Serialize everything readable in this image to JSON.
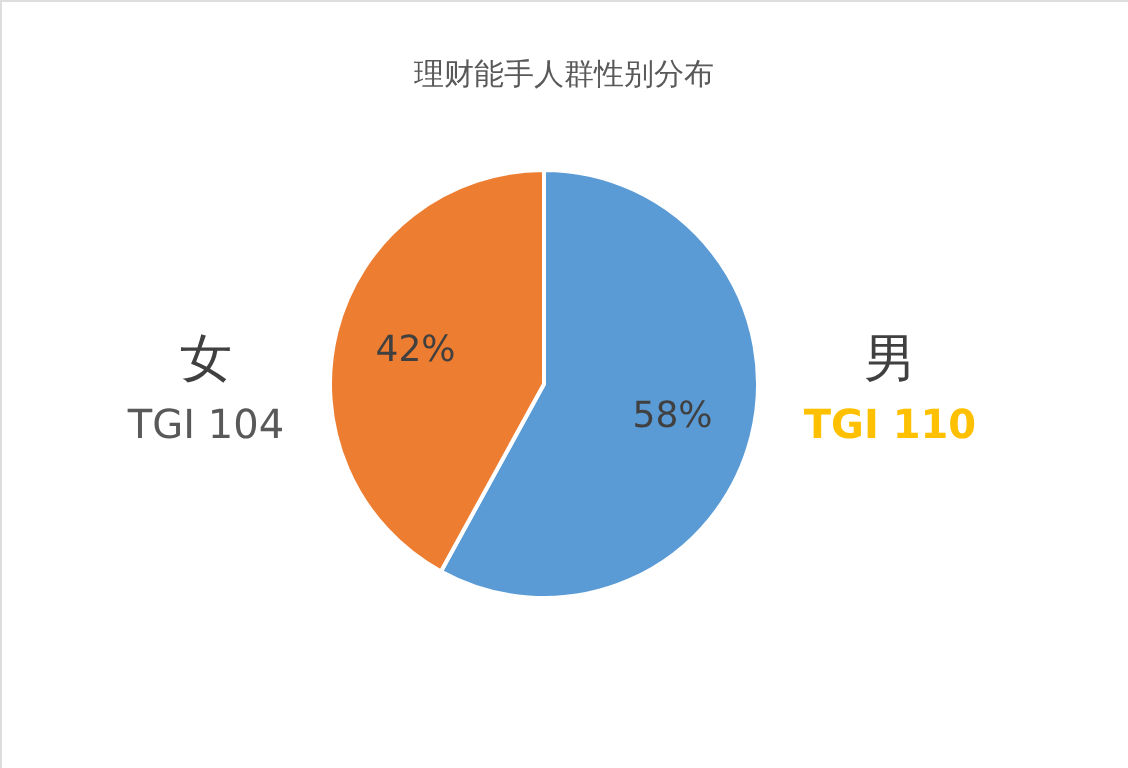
{
  "chart_data": {
    "type": "pie",
    "title": "理财能手人群性别分布",
    "categories": [
      "男",
      "女"
    ],
    "values": [
      58,
      42
    ],
    "value_labels": [
      "58%",
      "42%"
    ],
    "colors": [
      "#5b9bd5",
      "#ed7d31"
    ],
    "annotations": [
      "TGI 110",
      "TGI 104"
    ]
  }
}
